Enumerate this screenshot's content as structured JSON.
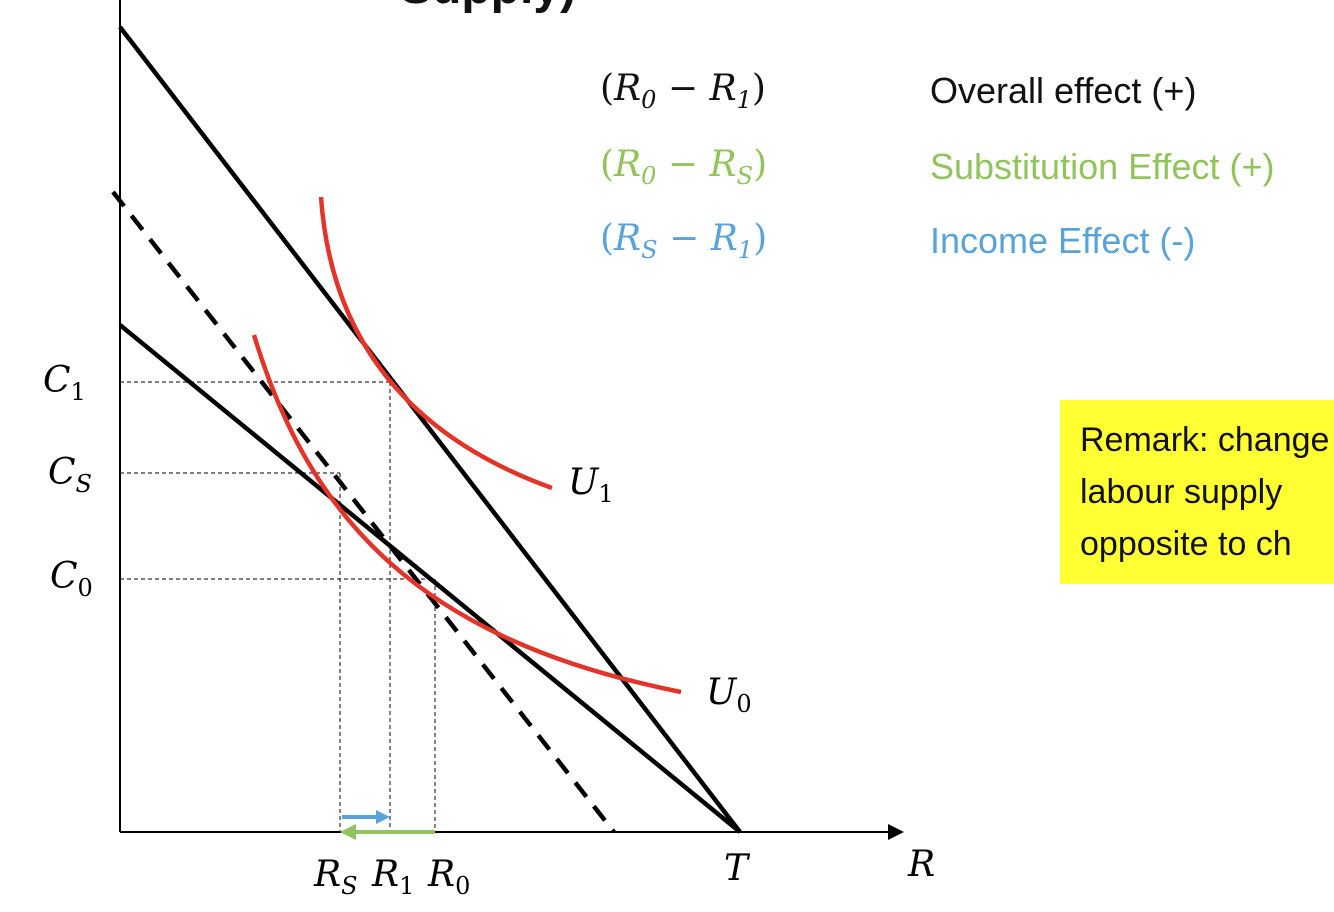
{
  "title_fragment": "Supply)",
  "labels": {
    "c1": "C",
    "c1_sub": "1",
    "cs": "C",
    "cs_sub": "S",
    "c0": "C",
    "c0_sub": "0",
    "rs": "R",
    "rs_sub": "S",
    "r1": "R",
    "r1_sub": "1",
    "r0": "R",
    "r0_sub": "0",
    "t": "T",
    "r_axis": "R",
    "u1": "U",
    "u1_sub": "1",
    "u0": "U",
    "u0_sub": "0"
  },
  "legend": [
    {
      "a": "R",
      "a_sub": "0",
      "b": "R",
      "b_sub": "1",
      "description": "Overall effect  (+)",
      "color": "#111111"
    },
    {
      "a": "R",
      "a_sub": "0",
      "b": "R",
      "b_sub": "S",
      "description": "Substitution Effect (+)",
      "color": "#92c45c"
    },
    {
      "a": "R",
      "a_sub": "S",
      "b": "R",
      "b_sub": "1",
      "description": "Income Effect (-)",
      "color": "#5aa3d9"
    }
  ],
  "remark": {
    "lines": [
      "Remark: change",
      "labour supply",
      "opposite to ch"
    ]
  },
  "colors": {
    "budget": "#000000",
    "indifference": "#e3342a",
    "substitution": "#92c45c",
    "income": "#5aa3d9",
    "remark_bg": "#ffff33"
  }
}
